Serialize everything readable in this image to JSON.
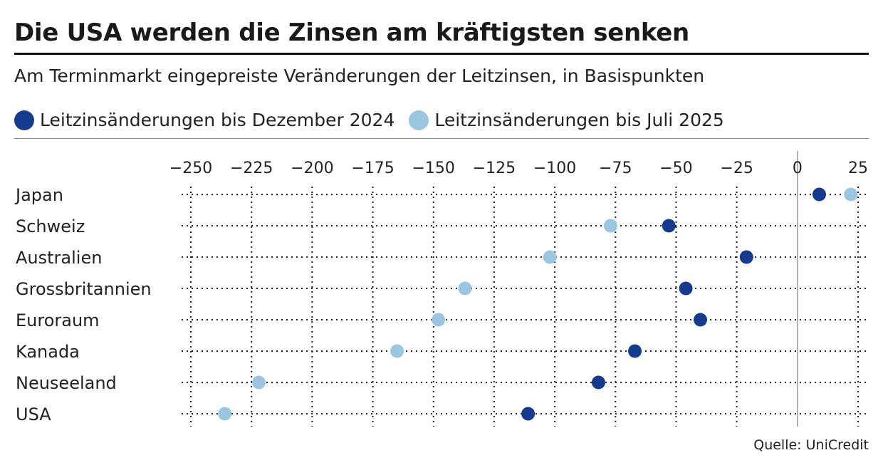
{
  "header": {
    "title": "Die USA werden die Zinsen am kräftigsten senken",
    "subtitle": "Am Terminmarkt eingepreiste Veränderungen der Leitzinsen, in Basispunkten"
  },
  "legend": [
    {
      "label": "Leitzinsänderungen bis Dezember 2024",
      "color": "#163a8c"
    },
    {
      "label": "Leitzinsänderungen bis Juli 2025",
      "color": "#9cc6e0"
    }
  ],
  "source": "Quelle: UniCredit",
  "chart_data": {
    "type": "scatter",
    "title": "Die USA werden die Zinsen am kräftigsten senken",
    "subtitle": "Am Terminmarkt eingepreiste Veränderungen der Leitzinsen, in Basispunkten",
    "xlim": [
      -250,
      25
    ],
    "xticks": [
      -250,
      -225,
      -200,
      -175,
      -150,
      -125,
      -100,
      -75,
      -50,
      -25,
      0,
      25
    ],
    "xtick_labels": [
      "−250",
      "−225",
      "−200",
      "−175",
      "−150",
      "−125",
      "−100",
      "−75",
      "−50",
      "−25",
      "0",
      "25"
    ],
    "categories": [
      "Japan",
      "Schweiz",
      "Australien",
      "Grossbritannien",
      "Euroraum",
      "Kanada",
      "Neuseeland",
      "USA"
    ],
    "series": [
      {
        "name": "Leitzinsänderungen bis Dezember 2024",
        "color": "#163a8c",
        "values": [
          9,
          -53,
          -21,
          -46,
          -40,
          -67,
          -82,
          -111
        ]
      },
      {
        "name": "Leitzinsänderungen bis Juli 2025",
        "color": "#9cc6e0",
        "values": [
          22,
          -77,
          -102,
          -137,
          -148,
          -165,
          -222,
          -236
        ]
      }
    ],
    "grid": "dotted",
    "legend_position": "top-left"
  }
}
